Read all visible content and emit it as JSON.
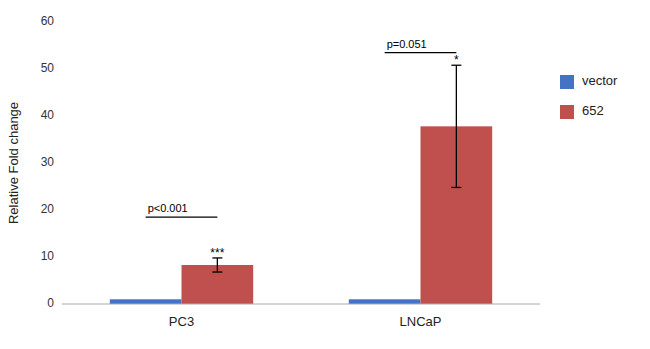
{
  "chart_data": {
    "type": "bar",
    "categories": [
      "PC3",
      "LNCaP"
    ],
    "series": [
      {
        "name": "vector",
        "color": "#4472C4",
        "values": [
          1.0,
          1.0
        ]
      },
      {
        "name": "652",
        "color": "#C0504D",
        "values": [
          8.3,
          37.8
        ],
        "errors": [
          1.5,
          13.0
        ]
      }
    ],
    "y_label": "Relative Fold change",
    "ylim": [
      0,
      60
    ],
    "yticks": [
      0,
      10,
      20,
      30,
      40,
      50,
      60
    ],
    "grid": false,
    "legend": "right",
    "annotations": [
      {
        "category": "PC3",
        "text": "p<0.001",
        "y": 18.5
      },
      {
        "category": "PC3",
        "text": "***"
      },
      {
        "category": "LNCaP",
        "text": "p=0.051",
        "y": 53.5
      },
      {
        "category": "LNCaP",
        "text": "*"
      }
    ]
  }
}
